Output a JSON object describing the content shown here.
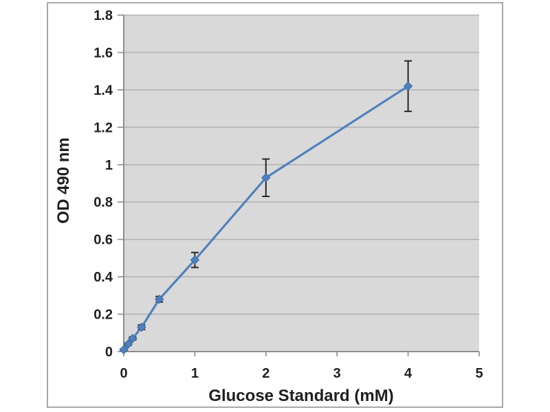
{
  "figure": {
    "background_color": "#ffffff",
    "card_border_color": "#a8a8a8",
    "card_background_color": "#ffffff"
  },
  "chart_data": {
    "type": "line",
    "title": "",
    "xlabel": "Glucose Standard (mM)",
    "ylabel": "OD 490 nm",
    "x": [
      0,
      0.0625,
      0.125,
      0.25,
      0.5,
      1,
      2,
      4
    ],
    "series": [
      {
        "values": [
          0.01,
          0.04,
          0.07,
          0.13,
          0.28,
          0.49,
          0.93,
          1.42
        ],
        "errors": [
          0.005,
          0.006,
          0.008,
          0.012,
          0.015,
          0.04,
          0.1,
          0.135
        ],
        "color": "#4f81bd",
        "marker": "diamond",
        "marker_edge_color": "#3a6aa5"
      }
    ],
    "xlim": [
      0,
      5
    ],
    "ylim": [
      0,
      1.8
    ],
    "x_ticks": [
      0,
      1,
      2,
      3,
      4,
      5
    ],
    "y_ticks": [
      0,
      0.2,
      0.4,
      0.6,
      0.8,
      1,
      1.2,
      1.4,
      1.6,
      1.8
    ],
    "grid": "horizontal",
    "legend": "none",
    "plot_background": "#d9d9d9",
    "gridline_color": "#b3b3b3",
    "axis_color": "#8c8c8c",
    "error_bar_color": "#262626",
    "tick_label_color": "#1f1f1f"
  }
}
